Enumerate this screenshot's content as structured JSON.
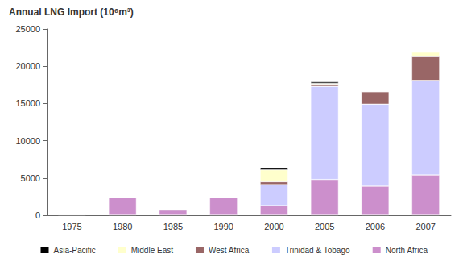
{
  "chart_data": {
    "type": "bar",
    "title": "Annual LNG Import (10⁶m³)",
    "stacked": true,
    "categories": [
      "1975",
      "1980",
      "1985",
      "1990",
      "2000",
      "2005",
      "2006",
      "2007"
    ],
    "series": [
      {
        "name": "North Africa",
        "color": "#cc8fcc",
        "values": [
          100,
          2400,
          700,
          2400,
          1300,
          4800,
          3900,
          5400
        ]
      },
      {
        "name": "Trinidad & Tobago",
        "color": "#ccccff",
        "values": [
          0,
          0,
          0,
          0,
          2800,
          12500,
          11000,
          12700
        ]
      },
      {
        "name": "West Africa",
        "color": "#996666",
        "values": [
          0,
          0,
          0,
          0,
          400,
          300,
          1700,
          3200
        ]
      },
      {
        "name": "Middle East",
        "color": "#ffffcc",
        "values": [
          0,
          0,
          0,
          0,
          1600,
          100,
          0,
          600
        ]
      },
      {
        "name": "Asia-Pacific",
        "color": "#000000",
        "values": [
          0,
          0,
          0,
          0,
          250,
          200,
          0,
          0
        ]
      }
    ],
    "legend_order": [
      "Asia-Pacific",
      "Middle East",
      "West Africa",
      "Trinidad & Tobago",
      "North Africa"
    ],
    "ylim": [
      0,
      25000
    ],
    "yticks": [
      0,
      5000,
      10000,
      15000,
      20000,
      25000
    ],
    "grid": false,
    "legend": "bottom"
  }
}
